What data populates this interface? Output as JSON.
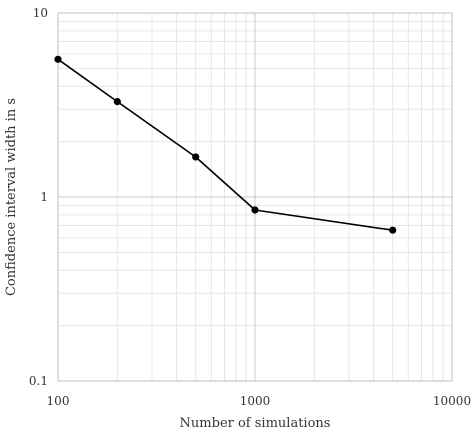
{
  "chart_data": {
    "type": "line",
    "title": "",
    "xlabel": "Number of simulations",
    "ylabel": "Confidence interval width in s",
    "x_scale": "log",
    "y_scale": "log",
    "xlim": [
      100,
      10000
    ],
    "ylim": [
      0.1,
      10
    ],
    "x_ticks": [
      "100",
      "1000",
      "10000"
    ],
    "y_ticks": [
      "10",
      "1",
      "0.1"
    ],
    "grid": true,
    "legend": "none",
    "series": [
      {
        "x": [
          100,
          200,
          500,
          1000,
          5000
        ],
        "y": [
          5.6,
          3.3,
          1.65,
          0.85,
          0.66
        ],
        "color": "#000000",
        "marker": "circle"
      }
    ]
  }
}
